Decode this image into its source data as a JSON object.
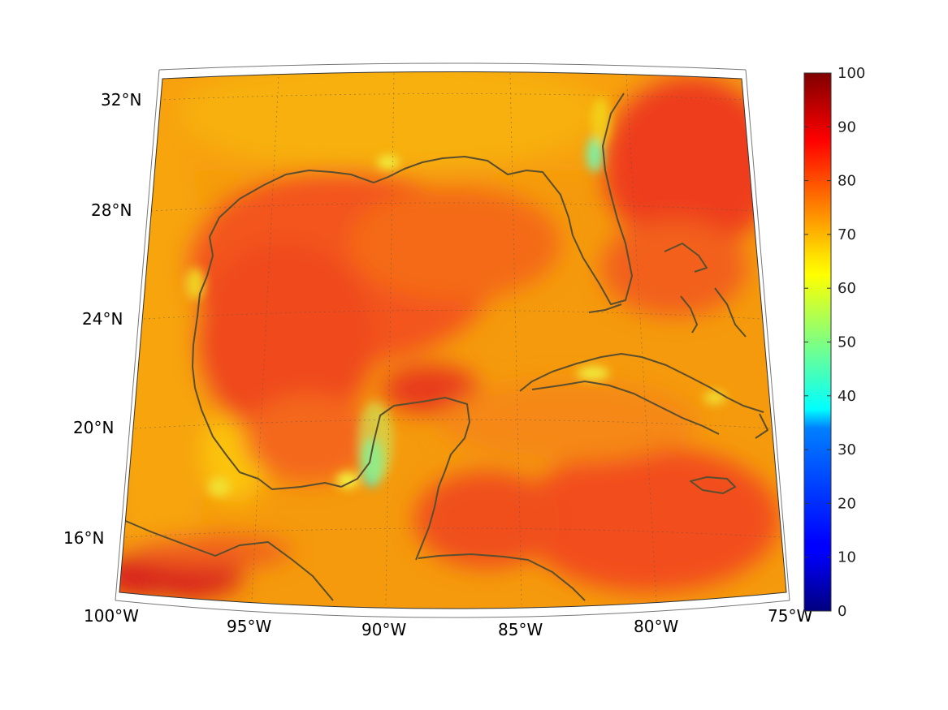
{
  "map": {
    "projection": "conic",
    "lon_range": [
      -100,
      -75
    ],
    "lat_range": [
      14,
      33
    ],
    "longitude_ticks": [
      {
        "value": -100,
        "label": "100°W"
      },
      {
        "value": -95,
        "label": "95°W"
      },
      {
        "value": -90,
        "label": "90°W"
      },
      {
        "value": -85,
        "label": "85°W"
      },
      {
        "value": -80,
        "label": "80°W"
      },
      {
        "value": -75,
        "label": "75°W"
      }
    ],
    "latitude_ticks": [
      {
        "value": 16,
        "label": "16°N"
      },
      {
        "value": 20,
        "label": "20°N"
      },
      {
        "value": 24,
        "label": "24°N"
      },
      {
        "value": 28,
        "label": "28°N"
      },
      {
        "value": 32,
        "label": "32°N"
      }
    ],
    "gridlines": true,
    "coastline_color": "#5a4e2e"
  },
  "colorbar": {
    "colormap": "jet",
    "range": [
      0,
      100
    ],
    "ticks": [
      "0",
      "10",
      "20",
      "30",
      "40",
      "50",
      "60",
      "70",
      "80",
      "90",
      "100"
    ],
    "placement": "right"
  }
}
